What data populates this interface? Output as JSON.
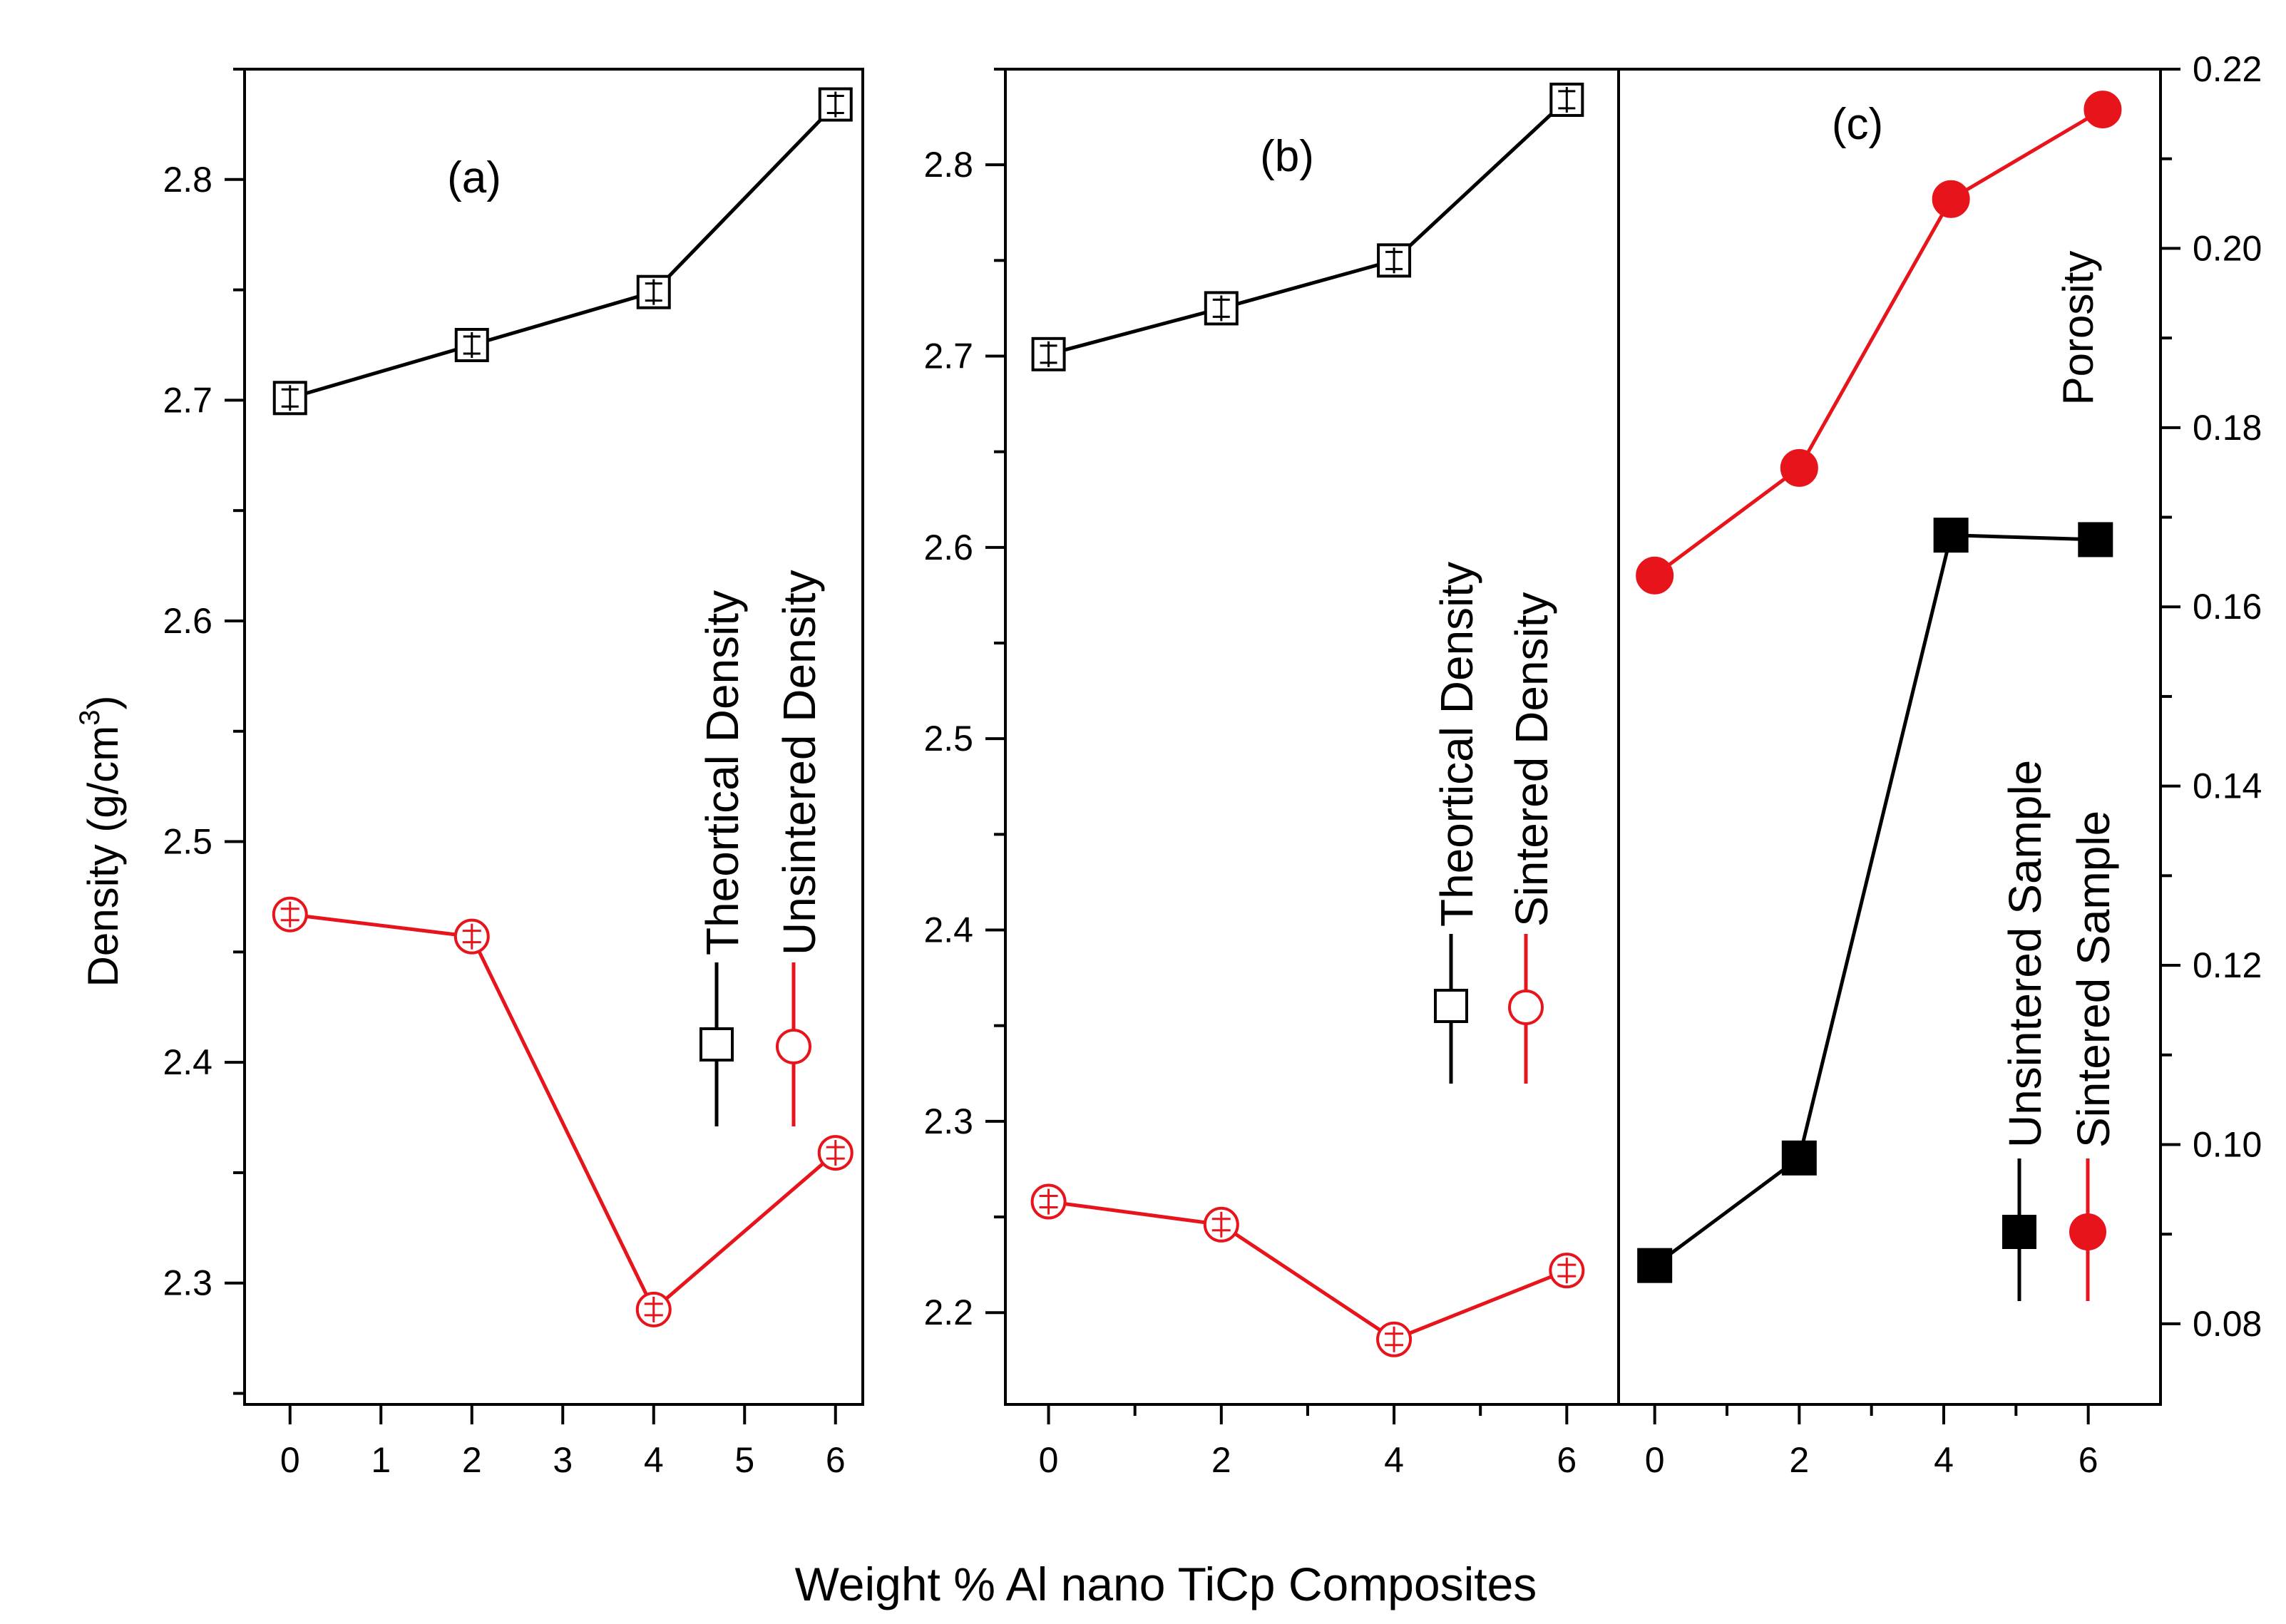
{
  "xlabel": "Weight % Al nano TiCp Composites",
  "ylabel_prefix": "Density (g/cm",
  "ylabel_sup": "3",
  "ylabel_suffix": ")",
  "colors": {
    "black": "#000000",
    "red": "#e8141b"
  },
  "chart_data": [
    {
      "type": "line",
      "panel": "(a)",
      "xlim": [
        -0.5,
        6.3
      ],
      "ylim": [
        2.245,
        2.85
      ],
      "x_ticks": [
        0,
        1,
        2,
        3,
        4,
        5,
        6
      ],
      "y_ticks": [
        2.3,
        2.4,
        2.5,
        2.6,
        2.7,
        2.8
      ],
      "legend_placement": "center-right, rotated vertical",
      "series": [
        {
          "name": "Theortical Density",
          "color": "#000000",
          "marker": "open-square",
          "x": [
            0,
            2,
            4,
            6
          ],
          "y": [
            2.701,
            2.725,
            2.749,
            2.834
          ]
        },
        {
          "name": "Unsintered Density",
          "color": "#e8141b",
          "marker": "open-circle",
          "x": [
            0,
            2,
            4,
            6
          ],
          "y": [
            2.467,
            2.457,
            2.288,
            2.359
          ]
        }
      ]
    },
    {
      "type": "line",
      "panel": "(b)",
      "xlim": [
        -0.5,
        6.6
      ],
      "ylim": [
        2.152,
        2.85
      ],
      "x_ticks": [
        0,
        2,
        4,
        6
      ],
      "y_ticks": [
        2.2,
        2.3,
        2.4,
        2.5,
        2.6,
        2.7,
        2.8
      ],
      "legend_placement": "center-right, rotated vertical",
      "series": [
        {
          "name": "Theortical Density",
          "color": "#000000",
          "marker": "open-square",
          "x": [
            0,
            2,
            4,
            6
          ],
          "y": [
            2.701,
            2.725,
            2.75,
            2.834
          ]
        },
        {
          "name": "Sintered Density",
          "color": "#e8141b",
          "marker": "open-circle",
          "x": [
            0,
            2,
            4,
            6
          ],
          "y": [
            2.258,
            2.246,
            2.186,
            2.222
          ]
        }
      ]
    },
    {
      "type": "line",
      "panel": "(c)",
      "xlim": [
        -0.5,
        7.0
      ],
      "ylim": [
        0.071,
        0.22
      ],
      "x_ticks": [
        0,
        2,
        4,
        6
      ],
      "y_ticks": [
        0.08,
        0.1,
        0.12,
        0.14,
        0.16,
        0.18,
        0.2,
        0.22
      ],
      "y_tick_labels": [
        "0.08",
        "0.10",
        "0.12",
        "0.14",
        "0.16",
        "0.18",
        "0.20",
        "0.22"
      ],
      "ylabel": "Porosity",
      "legend_placement": "lower-right, rotated vertical",
      "series": [
        {
          "name": "Unsintered Sample",
          "color": "#000000",
          "marker": "filled-square",
          "x": [
            0,
            2,
            4.1,
            6.1
          ],
          "y": [
            0.0865,
            0.0985,
            0.168,
            0.1675
          ]
        },
        {
          "name": "Sintered Sample",
          "color": "#e8141b",
          "marker": "filled-circle",
          "x": [
            0,
            2,
            4.1,
            6.2
          ],
          "y": [
            0.1635,
            0.1755,
            0.2055,
            0.2155
          ]
        }
      ]
    }
  ]
}
